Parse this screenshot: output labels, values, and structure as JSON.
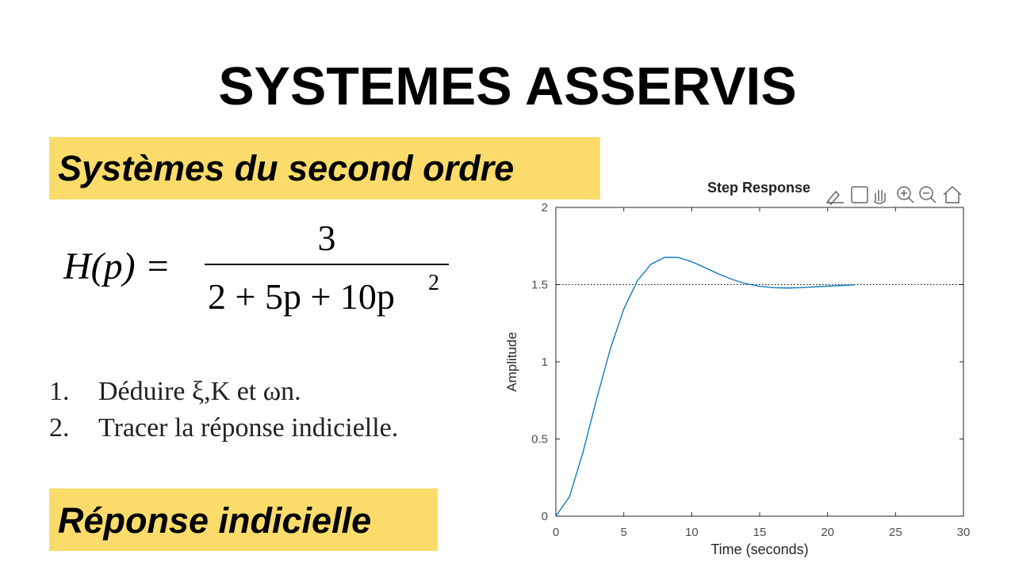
{
  "header": {
    "title": "SYSTEMES ASSERVIS"
  },
  "sections": [
    "Systèmes du second ordre",
    "Réponse indicielle"
  ],
  "formula": {
    "lhs": "H(p) =",
    "numerator": "3",
    "denominator": "2 + 5p + 10p",
    "denominator_exponent": "2"
  },
  "questions": [
    {
      "number": "1.",
      "text": "Déduire ξ,K et ωn."
    },
    {
      "number": "2.",
      "text": "Tracer la réponse indicielle."
    }
  ],
  "chart_data": {
    "type": "line",
    "title": "Step Response",
    "x_label": "Time (seconds)",
    "y_label": "Amplitude",
    "x": [
      0,
      1,
      2,
      3,
      4,
      5,
      6,
      7,
      8,
      9,
      10,
      11,
      12,
      13,
      14,
      15,
      16,
      17,
      18,
      19,
      20,
      21,
      22
    ],
    "series": [
      {
        "color": "#0072bd",
        "values": [
          0,
          0.126,
          0.415,
          0.759,
          1.081,
          1.342,
          1.525,
          1.632,
          1.676,
          1.676,
          1.648,
          1.609,
          1.568,
          1.533,
          1.506,
          1.489,
          1.48,
          1.478,
          1.48,
          1.485,
          1.49,
          1.494,
          1.498
        ]
      }
    ],
    "steady_state": 1.5,
    "xlim": [
      0,
      30
    ],
    "ylim": [
      0,
      2
    ],
    "xticks": [
      0,
      5,
      10,
      15,
      20,
      25,
      30
    ],
    "yticks": [
      0,
      0.5,
      1,
      1.5,
      2
    ]
  }
}
